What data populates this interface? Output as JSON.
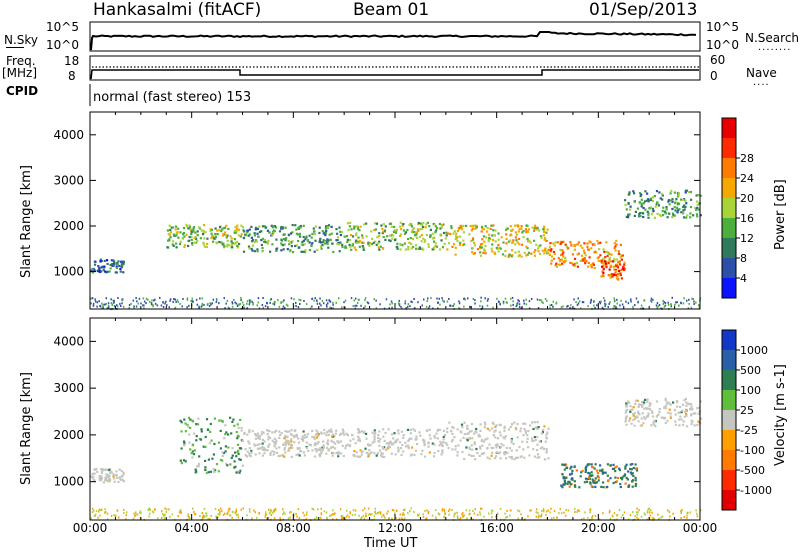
{
  "header": {
    "station": "Hankasalmi (fitACF)",
    "beam": "Beam 01",
    "date": "01/Sep/2013"
  },
  "strip1": {
    "left_label": "N.Sky",
    "left_ticks": [
      "10^5",
      "10^0"
    ],
    "right_label": "N.Search",
    "right_ticks": [
      "10^5",
      "10^0"
    ]
  },
  "strip2": {
    "left_label_1": "Freq.",
    "left_label_2": "[MHz]",
    "left_ticks": [
      "18",
      "8"
    ],
    "right_label": "Nave",
    "right_ticks": [
      "60",
      "0"
    ]
  },
  "cpid": {
    "label": "CPID",
    "text": "normal (fast stereo) 153"
  },
  "panels": {
    "ylabel": "Slant Range [km]",
    "xlabel": "Time UT",
    "x_ticks": [
      "00:00",
      "04:00",
      "08:00",
      "12:00",
      "16:00",
      "20:00",
      "00:00"
    ],
    "y_ticks": [
      "1000",
      "2000",
      "3000",
      "4000"
    ]
  },
  "power_scale": {
    "label": "Power [dB]",
    "ticks": [
      "4",
      "8",
      "12",
      "16",
      "20",
      "24",
      "28"
    ],
    "colors": [
      "#0a14ff",
      "#2c4fa8",
      "#2f7a5c",
      "#4caf3c",
      "#a8d43a",
      "#f5a800",
      "#ff7a00",
      "#ff2a00",
      "#e80000"
    ]
  },
  "velocity_scale": {
    "label": "Velocity [m s-1]",
    "ticks": [
      "1000",
      "500",
      "100",
      "25",
      "-25",
      "-100",
      "-500",
      "-1000"
    ],
    "colors": [
      "#1238c8",
      "#2a60a8",
      "#2f7d52",
      "#5fbf3a",
      "#c6c6c0",
      "#ffa000",
      "#ff7a00",
      "#ff2a00",
      "#e00000"
    ]
  },
  "chart_data": [
    {
      "type": "heatmap",
      "title": "Power",
      "xlabel": "Time UT",
      "ylabel": "Slant Range [km]",
      "xlim": [
        0,
        24
      ],
      "ylim": [
        180,
        4500
      ],
      "colorbar_label": "Power [dB]",
      "colorbar_ticks": [
        4,
        8,
        12,
        16,
        20,
        24,
        28
      ],
      "scatter_bands": [
        {
          "x_start": 0.0,
          "x_end": 1.3,
          "range_center": 1150,
          "range_half_width": 150,
          "level": 8
        },
        {
          "x_start": 3.0,
          "x_end": 6.0,
          "range_center": 1800,
          "range_half_width": 250,
          "level": 16
        },
        {
          "x_start": 6.0,
          "x_end": 10.0,
          "range_center": 1750,
          "range_half_width": 300,
          "level": 12
        },
        {
          "x_start": 10.0,
          "x_end": 14.0,
          "range_center": 1800,
          "range_half_width": 300,
          "level": 16
        },
        {
          "x_start": 14.0,
          "x_end": 18.0,
          "range_center": 1700,
          "range_half_width": 350,
          "level": 20
        },
        {
          "x_start": 18.0,
          "x_end": 21.0,
          "range_center": 1400,
          "range_half_width": 300,
          "level": 24
        },
        {
          "x_start": 20.0,
          "x_end": 21.0,
          "range_center": 1050,
          "range_half_width": 200,
          "level": 28
        },
        {
          "x_start": 21.0,
          "x_end": 24.0,
          "range_center": 2500,
          "range_half_width": 300,
          "level": 12
        }
      ]
    },
    {
      "type": "heatmap",
      "title": "Velocity",
      "xlabel": "Time UT",
      "ylabel": "Slant Range [km]",
      "xlim": [
        0,
        24
      ],
      "ylim": [
        180,
        4500
      ],
      "colorbar_label": "Velocity [m s-1]",
      "colorbar_ticks": [
        1000,
        500,
        100,
        25,
        -25,
        -100,
        -500,
        -1000
      ],
      "scatter_bands": [
        {
          "x_start": 0.0,
          "x_end": 1.3,
          "range_center": 1150,
          "range_half_width": 150,
          "level": 0
        },
        {
          "x_start": 3.5,
          "x_end": 6.0,
          "range_center": 1800,
          "range_half_width": 600,
          "level": 150
        },
        {
          "x_start": 6.0,
          "x_end": 14.0,
          "range_center": 1850,
          "range_half_width": 300,
          "level": 0
        },
        {
          "x_start": 14.0,
          "x_end": 18.0,
          "range_center": 1900,
          "range_half_width": 400,
          "level": 0
        },
        {
          "x_start": 18.5,
          "x_end": 21.5,
          "range_center": 1150,
          "range_half_width": 250,
          "level": 300
        },
        {
          "x_start": 21.0,
          "x_end": 24.0,
          "range_center": 2500,
          "range_half_width": 300,
          "level": 0
        }
      ]
    }
  ]
}
